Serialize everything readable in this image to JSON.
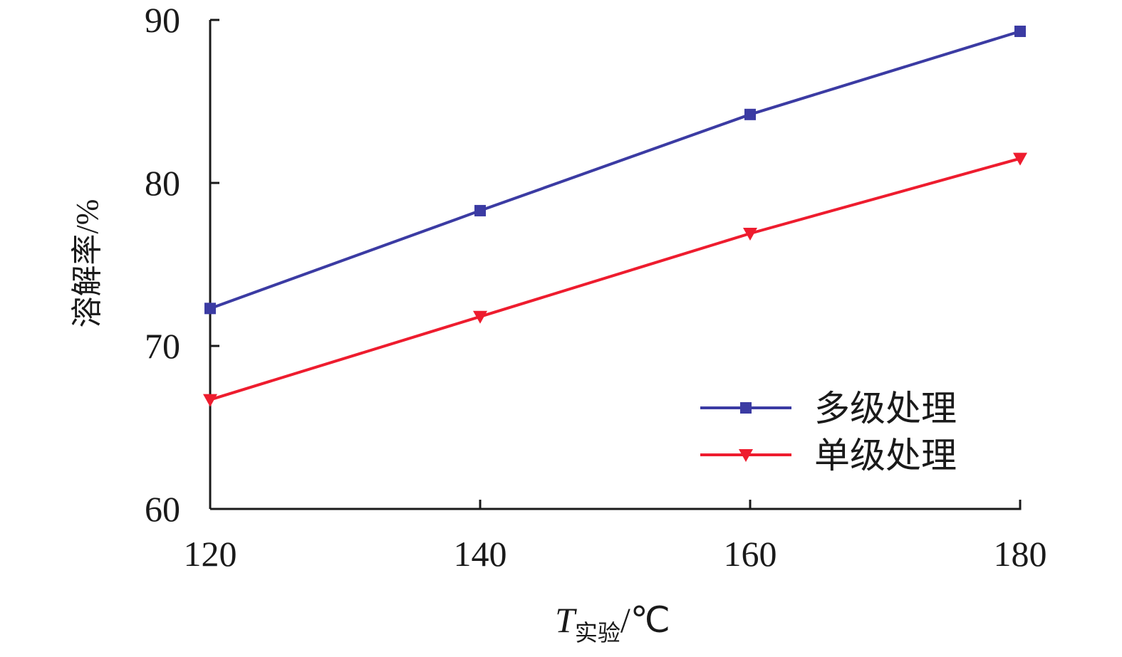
{
  "chart_data": {
    "type": "line",
    "x_label": {
      "symbol": "T",
      "subscript": "实验",
      "unit": "/℃"
    },
    "y_label": "溶解率/%",
    "x": [
      120,
      140,
      160,
      180
    ],
    "xlim": [
      120,
      180
    ],
    "xticks": [
      120,
      140,
      160,
      180
    ],
    "ylim": [
      60,
      90
    ],
    "yticks": [
      60,
      70,
      80,
      90
    ],
    "legend": "lower-right",
    "series": [
      {
        "name": "多级处理",
        "color": "#3b3ba3",
        "marker": "square",
        "values": [
          72.3,
          78.3,
          84.2,
          89.3
        ]
      },
      {
        "name": "单级处理",
        "color": "#ee1c2e",
        "marker": "triangle-down",
        "values": [
          66.7,
          71.8,
          76.9,
          81.5
        ]
      }
    ]
  }
}
